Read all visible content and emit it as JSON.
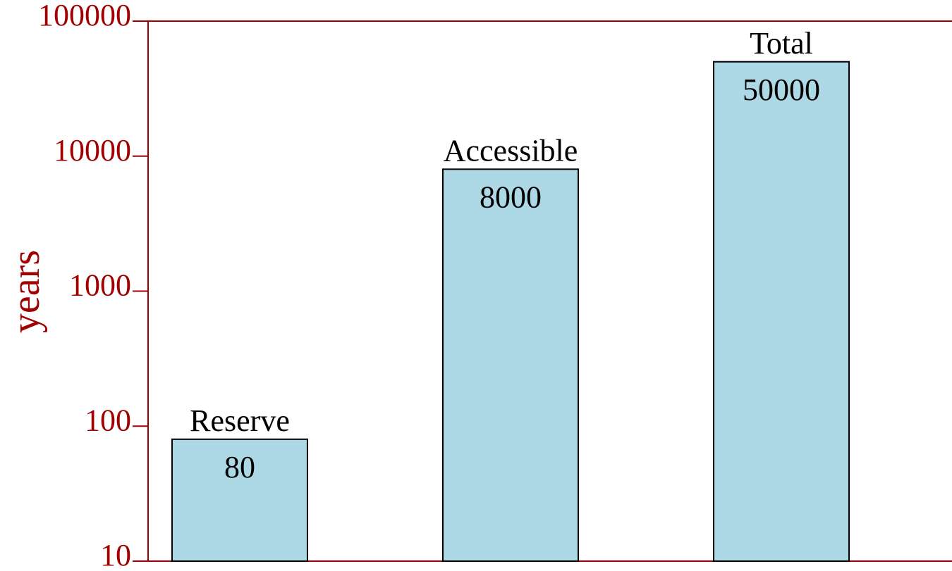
{
  "chart_data": {
    "type": "bar",
    "ylabel": "years",
    "categories": [
      "Reserve",
      "Accessible",
      "Total"
    ],
    "values": [
      80,
      8000,
      50000
    ],
    "color": "#add8e6",
    "axis_color": "#a00000",
    "yscale": "log",
    "ylim": [
      10,
      100000
    ],
    "yticks": [
      10,
      100,
      1000,
      10000,
      100000
    ],
    "grid": false
  }
}
